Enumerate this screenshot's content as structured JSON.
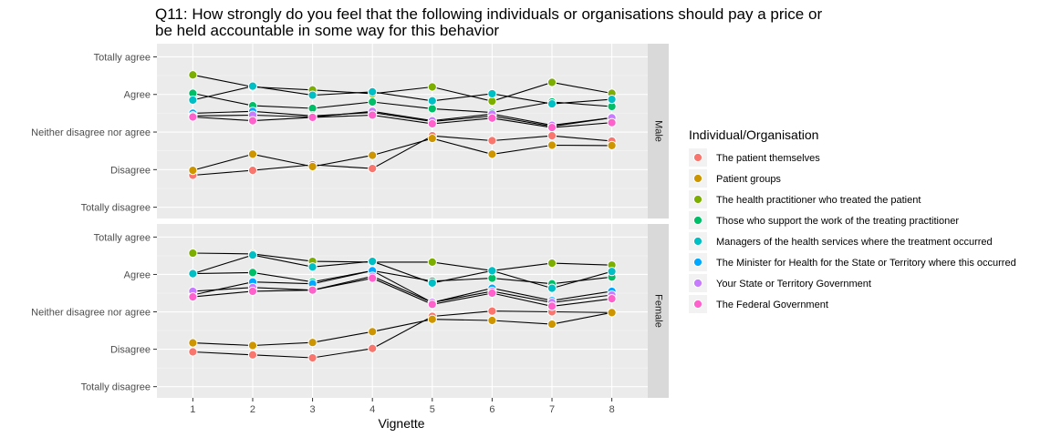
{
  "chart_data": {
    "type": "line",
    "title_lines": [
      "Q11: How strongly do you feel that the following individuals or organisations should pay a price or",
      "be held accountable in some way for this behavior"
    ],
    "xlabel": "Vignette",
    "x": [
      1,
      2,
      3,
      4,
      5,
      6,
      7,
      8
    ],
    "y_ticks": [
      "Totally disagree",
      "Disagree",
      "Neither disagree nor agree",
      "Agree",
      "Totally agree"
    ],
    "ylim": [
      0.7,
      5.35
    ],
    "grid": true,
    "facets": [
      "Male",
      "Female"
    ],
    "legend": {
      "title": "Individual/Organisation",
      "position": "right",
      "entries": [
        {
          "name": "The patient themselves",
          "color": "#F8766D"
        },
        {
          "name": "Patient groups",
          "color": "#CD9600"
        },
        {
          "name": "The health practitioner who treated the patient",
          "color": "#7CAE00"
        },
        {
          "name": "Those who support the work of the treating practitioner",
          "color": "#00BE67"
        },
        {
          "name": "Managers of the health services where the treatment occurred",
          "color": "#00BFC4"
        },
        {
          "name": "The Minister for Health for the State or Territory where this occurred",
          "color": "#00A9FF"
        },
        {
          "name": "Your State or Territory Government",
          "color": "#C77CFF"
        },
        {
          "name": "The Federal Government",
          "color": "#FF61CC"
        }
      ]
    },
    "panels": [
      {
        "facet": "Male",
        "series": [
          {
            "name": "The patient themselves",
            "values": [
              1.85,
              1.98,
              2.13,
              2.03,
              2.9,
              2.77,
              2.9,
              2.76
            ]
          },
          {
            "name": "Patient groups",
            "values": [
              1.98,
              2.41,
              2.08,
              2.38,
              2.83,
              2.41,
              2.65,
              2.64
            ]
          },
          {
            "name": "The health practitioner who treated the patient",
            "values": [
              4.52,
              4.2,
              4.12,
              4.02,
              4.2,
              3.82,
              4.32,
              4.03
            ]
          },
          {
            "name": "Those who support the work of the treating practitioner",
            "values": [
              4.03,
              3.7,
              3.63,
              3.8,
              3.62,
              3.52,
              3.8,
              3.68
            ]
          },
          {
            "name": "Managers of the health services where the treatment occurred",
            "values": [
              3.85,
              4.22,
              3.98,
              4.07,
              3.83,
              4.02,
              3.75,
              3.87
            ]
          },
          {
            "name": "The Minister for Health for the State or Territory where this occurred",
            "values": [
              3.5,
              3.55,
              3.43,
              3.52,
              3.28,
              3.43,
              3.15,
              3.38
            ]
          },
          {
            "name": "Your State or Territory Government",
            "values": [
              3.43,
              3.45,
              3.4,
              3.55,
              3.3,
              3.48,
              3.18,
              3.38
            ]
          },
          {
            "name": "The Federal Government",
            "values": [
              3.4,
              3.3,
              3.39,
              3.45,
              3.22,
              3.37,
              3.12,
              3.25
            ]
          }
        ]
      },
      {
        "facet": "Female",
        "series": [
          {
            "name": "The patient themselves",
            "values": [
              1.93,
              1.85,
              1.77,
              2.02,
              2.88,
              3.02,
              3.0,
              2.98
            ]
          },
          {
            "name": "Patient groups",
            "values": [
              2.17,
              2.1,
              2.18,
              2.47,
              2.8,
              2.77,
              2.67,
              2.98
            ]
          },
          {
            "name": "The health practitioner who treated the patient",
            "values": [
              4.57,
              4.55,
              4.35,
              4.33,
              4.33,
              4.1,
              4.3,
              4.25
            ]
          },
          {
            "name": "Those who support the work of the treating practitioner",
            "values": [
              4.02,
              4.05,
              3.8,
              4.1,
              3.82,
              3.9,
              3.75,
              3.93
            ]
          },
          {
            "name": "Managers of the health services where the treatment occurred",
            "values": [
              4.02,
              4.52,
              4.2,
              4.35,
              3.77,
              4.1,
              3.63,
              4.08
            ]
          },
          {
            "name": "The Minister for Health for the State or Territory where this occurred",
            "values": [
              3.45,
              3.8,
              3.75,
              4.1,
              3.25,
              3.63,
              3.3,
              3.55
            ]
          },
          {
            "name": "Your State or Territory Government",
            "values": [
              3.55,
              3.65,
              3.58,
              3.95,
              3.25,
              3.55,
              3.25,
              3.45
            ]
          },
          {
            "name": "The Federal Government",
            "values": [
              3.4,
              3.55,
              3.58,
              3.9,
              3.2,
              3.5,
              3.15,
              3.35
            ]
          }
        ]
      }
    ]
  }
}
